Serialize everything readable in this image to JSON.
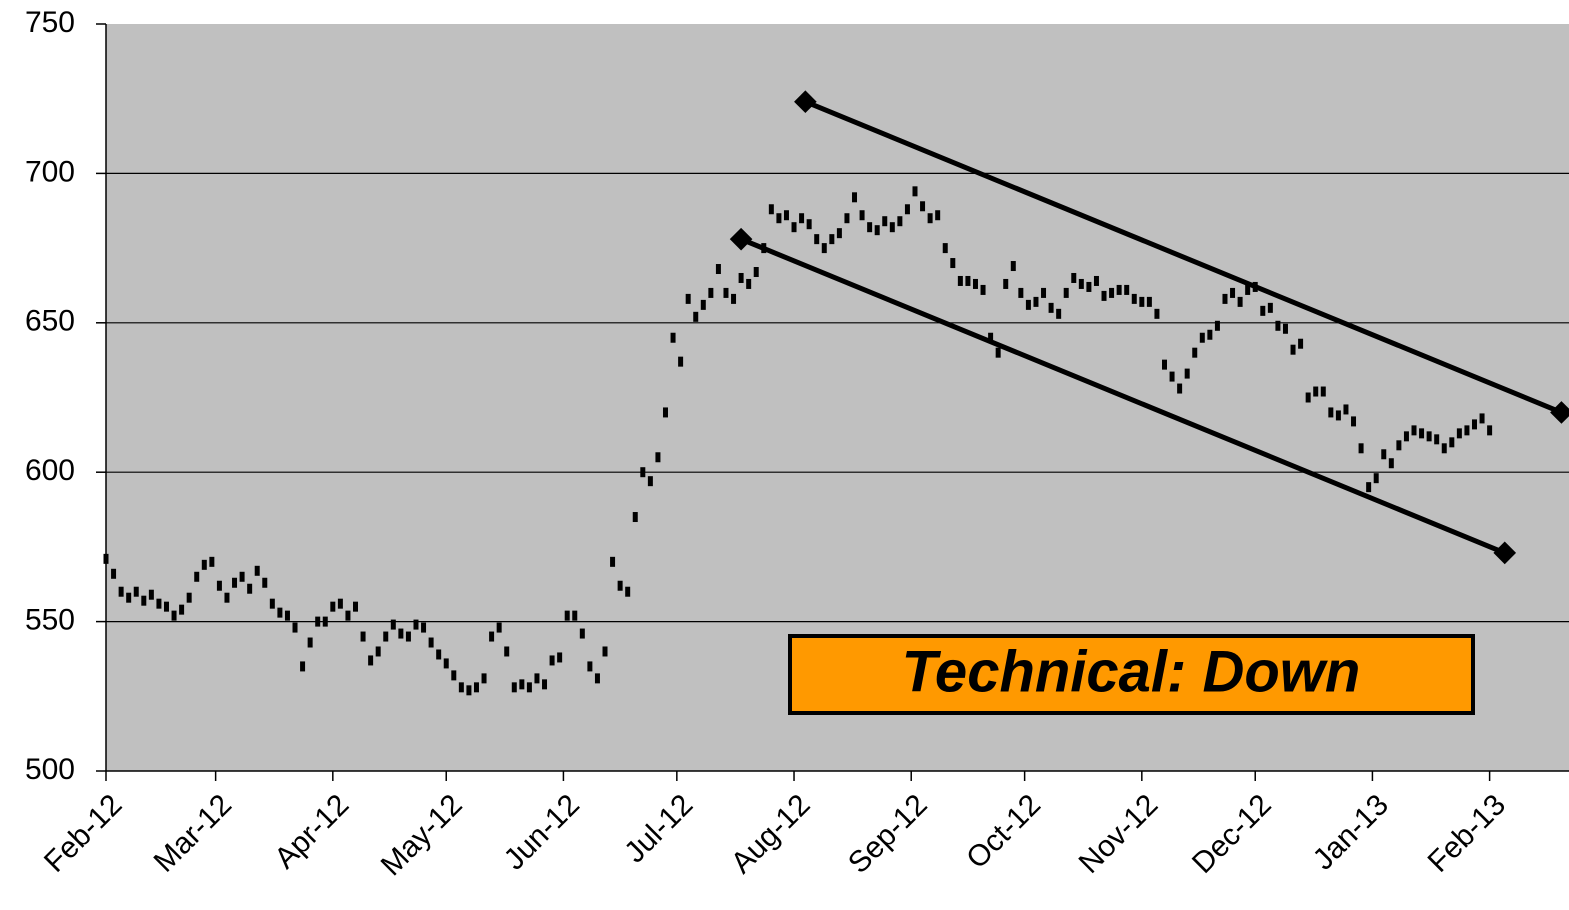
{
  "chart_data": {
    "type": "ohlc",
    "x": [
      0,
      2,
      4,
      6,
      8,
      10,
      12,
      14,
      16,
      18,
      20,
      22,
      24,
      26,
      28,
      30,
      32,
      34,
      36,
      38,
      40,
      42,
      44,
      46,
      48,
      50,
      52,
      54,
      56,
      58,
      60,
      62,
      64,
      66,
      68,
      70,
      72,
      74,
      76,
      78,
      80,
      82,
      84,
      86,
      88,
      90,
      92,
      94,
      96,
      98,
      100,
      102,
      104,
      106,
      108,
      110,
      112,
      114,
      116,
      118,
      120,
      122,
      124,
      126,
      128,
      130,
      132,
      134,
      136,
      138,
      140,
      142,
      144,
      146,
      148,
      150,
      152,
      154,
      156,
      158,
      160,
      162,
      164,
      166,
      168,
      170,
      172,
      174,
      176,
      178,
      180,
      182,
      184,
      186,
      188,
      190,
      192,
      194,
      196,
      198,
      200,
      202,
      204,
      206,
      208,
      210,
      212,
      214,
      216,
      218,
      220,
      222,
      224,
      226,
      228,
      230,
      232,
      234,
      236,
      238,
      240,
      242,
      244,
      246,
      248,
      250,
      252,
      254,
      256,
      258,
      260,
      262,
      264,
      266,
      268,
      270,
      272,
      274,
      276,
      278,
      280,
      282,
      284,
      286,
      288,
      290,
      292,
      294,
      296,
      298,
      300,
      302,
      304,
      306,
      308,
      310,
      312,
      314,
      316,
      318,
      320,
      322,
      324,
      326,
      328,
      330,
      332,
      334,
      336,
      338,
      340,
      342,
      344,
      346,
      348,
      350,
      352,
      354,
      356,
      358,
      360,
      362,
      364,
      366
    ],
    "values": [
      571,
      566,
      560,
      558,
      560,
      557,
      559,
      556,
      555,
      552,
      554,
      558,
      565,
      569,
      570,
      562,
      558,
      563,
      565,
      561,
      567,
      563,
      556,
      553,
      552,
      548,
      535,
      543,
      550,
      550,
      555,
      556,
      552,
      555,
      545,
      537,
      540,
      545,
      549,
      546,
      545,
      549,
      548,
      543,
      539,
      536,
      532,
      528,
      527,
      528,
      531,
      545,
      548,
      540,
      528,
      529,
      528,
      531,
      529,
      537,
      538,
      552,
      552,
      546,
      535,
      531,
      540,
      570,
      562,
      560,
      585,
      600,
      597,
      605,
      620,
      645,
      637,
      658,
      652,
      656,
      660,
      668,
      660,
      658,
      665,
      663,
      667,
      675,
      688,
      685,
      686,
      682,
      685,
      683,
      678,
      675,
      678,
      680,
      685,
      692,
      686,
      682,
      681,
      684,
      682,
      684,
      688,
      694,
      689,
      685,
      686,
      675,
      670,
      664,
      664,
      663,
      661,
      645,
      640,
      663,
      669,
      660,
      656,
      657,
      660,
      655,
      653,
      660,
      665,
      663,
      662,
      664,
      659,
      660,
      661,
      661,
      658,
      657,
      657,
      653,
      636,
      632,
      628,
      633,
      640,
      645,
      646,
      649,
      658,
      660,
      657,
      661,
      662,
      654,
      655,
      649,
      648,
      641,
      643,
      625,
      627,
      627,
      620,
      619,
      621,
      617,
      608,
      595,
      598,
      606,
      603,
      609,
      612,
      614,
      613,
      612,
      611,
      608,
      610,
      613,
      614,
      616,
      618,
      614
    ],
    "color": "#000000",
    "xlim": [
      0,
      387
    ],
    "xticks": [
      {
        "value": 0,
        "label": "Feb-12"
      },
      {
        "value": 29,
        "label": "Mar-12"
      },
      {
        "value": 60,
        "label": "Apr-12"
      },
      {
        "value": 90,
        "label": "May-12"
      },
      {
        "value": 121,
        "label": "Jun-12"
      },
      {
        "value": 151,
        "label": "Jul-12"
      },
      {
        "value": 182,
        "label": "Aug-12"
      },
      {
        "value": 213,
        "label": "Sep-12"
      },
      {
        "value": 243,
        "label": "Oct-12"
      },
      {
        "value": 274,
        "label": "Nov-12"
      },
      {
        "value": 304,
        "label": "Dec-12"
      },
      {
        "value": 335,
        "label": "Jan-13"
      },
      {
        "value": 366,
        "label": "Feb-13"
      }
    ],
    "ylim": [
      500,
      750
    ],
    "yticks": [
      500,
      550,
      600,
      650,
      700,
      750
    ],
    "grid": true,
    "trend_lines": [
      {
        "x": [
          185,
          385
        ],
        "y": [
          724,
          620
        ]
      },
      {
        "x": [
          168,
          370
        ],
        "y": [
          678,
          573
        ]
      }
    ],
    "annotation": {
      "text": "Technical: Down",
      "color": "#ff9900"
    }
  }
}
